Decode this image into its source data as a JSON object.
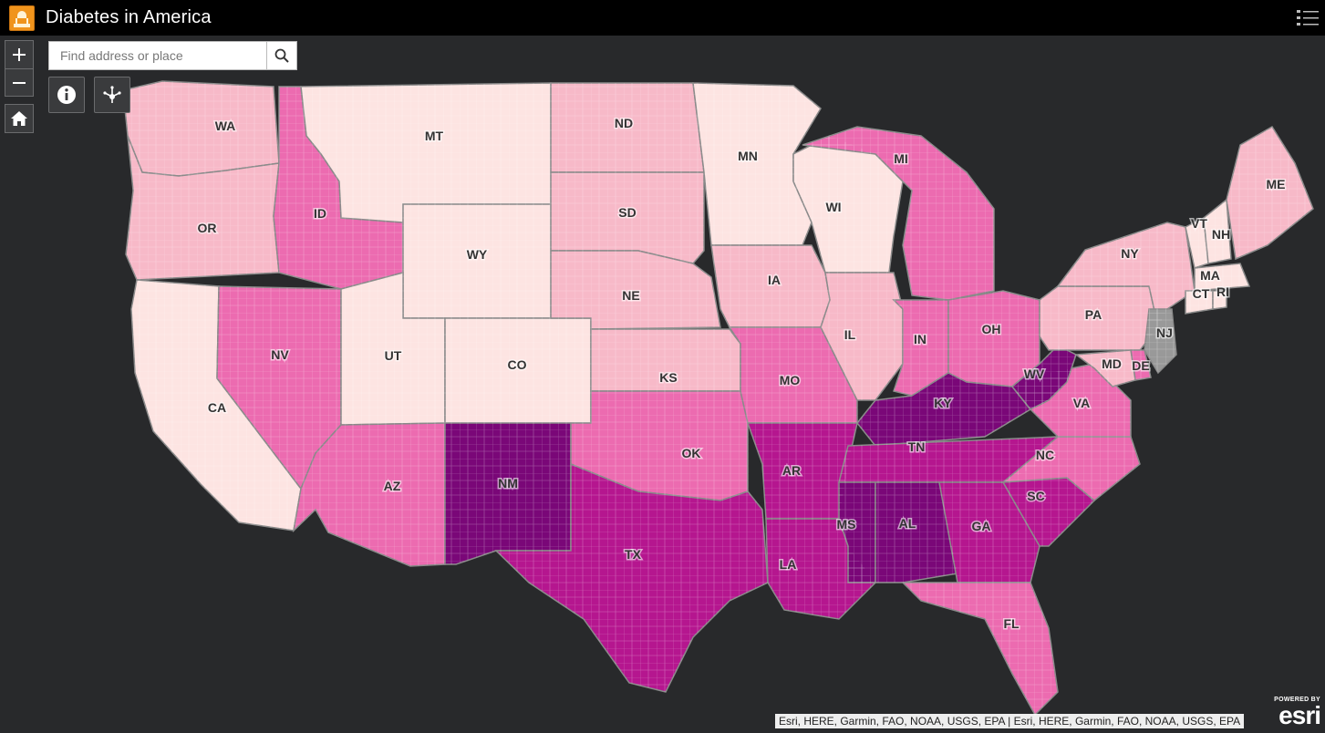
{
  "header": {
    "title": "Diabetes in America",
    "logo_icon": "capitol-dome-icon",
    "menu_icon": "layer-list-icon"
  },
  "search": {
    "placeholder": "Find address or place",
    "value": ""
  },
  "controls": {
    "zoom_in_icon": "plus-icon",
    "zoom_out_icon": "minus-icon",
    "home_icon": "home-icon",
    "info_icon": "info-icon",
    "share_icon": "share-icon"
  },
  "colors": {
    "background": "#28292b",
    "header": "#000000",
    "class_1": "#fde4e2",
    "class_2": "#f7b9c8",
    "class_3": "#ec6bb0",
    "class_4": "#b5168f",
    "class_5": "#7a0778",
    "no_data": "#999999"
  },
  "states": [
    {
      "abbr": "WA",
      "class": 2
    },
    {
      "abbr": "OR",
      "class": 2
    },
    {
      "abbr": "CA",
      "class": 1
    },
    {
      "abbr": "NV",
      "class": 3
    },
    {
      "abbr": "ID",
      "class": 3
    },
    {
      "abbr": "MT",
      "class": 1
    },
    {
      "abbr": "WY",
      "class": 1
    },
    {
      "abbr": "UT",
      "class": 1
    },
    {
      "abbr": "AZ",
      "class": 3
    },
    {
      "abbr": "CO",
      "class": 1
    },
    {
      "abbr": "NM",
      "class": 5
    },
    {
      "abbr": "ND",
      "class": 2
    },
    {
      "abbr": "SD",
      "class": 2
    },
    {
      "abbr": "NE",
      "class": 2
    },
    {
      "abbr": "KS",
      "class": 2
    },
    {
      "abbr": "OK",
      "class": 3
    },
    {
      "abbr": "TX",
      "class": 4
    },
    {
      "abbr": "MN",
      "class": 1
    },
    {
      "abbr": "IA",
      "class": 2
    },
    {
      "abbr": "MO",
      "class": 3
    },
    {
      "abbr": "AR",
      "class": 4
    },
    {
      "abbr": "LA",
      "class": 4
    },
    {
      "abbr": "WI",
      "class": 1
    },
    {
      "abbr": "IL",
      "class": 2
    },
    {
      "abbr": "MI",
      "class": 3
    },
    {
      "abbr": "IN",
      "class": 3
    },
    {
      "abbr": "OH",
      "class": 3
    },
    {
      "abbr": "KY",
      "class": 5
    },
    {
      "abbr": "TN",
      "class": 4
    },
    {
      "abbr": "MS",
      "class": 5
    },
    {
      "abbr": "AL",
      "class": 5
    },
    {
      "abbr": "GA",
      "class": 4
    },
    {
      "abbr": "FL",
      "class": 3
    },
    {
      "abbr": "SC",
      "class": 4
    },
    {
      "abbr": "NC",
      "class": 3
    },
    {
      "abbr": "VA",
      "class": 3
    },
    {
      "abbr": "WV",
      "class": 5
    },
    {
      "abbr": "PA",
      "class": 2
    },
    {
      "abbr": "NY",
      "class": 2
    },
    {
      "abbr": "VT",
      "class": 1
    },
    {
      "abbr": "NH",
      "class": 1
    },
    {
      "abbr": "ME",
      "class": 2
    },
    {
      "abbr": "MA",
      "class": 1
    },
    {
      "abbr": "CT",
      "class": 1
    },
    {
      "abbr": "RI",
      "class": 1
    },
    {
      "abbr": "NJ",
      "class": 0
    },
    {
      "abbr": "DE",
      "class": 3
    },
    {
      "abbr": "MD",
      "class": 2
    }
  ],
  "attribution": "Esri, HERE, Garmin, FAO, NOAA, USGS, EPA | Esri, HERE, Garmin, FAO, NOAA, USGS, EPA",
  "esri_badge": {
    "small": "POWERED BY",
    "word": "esri"
  }
}
